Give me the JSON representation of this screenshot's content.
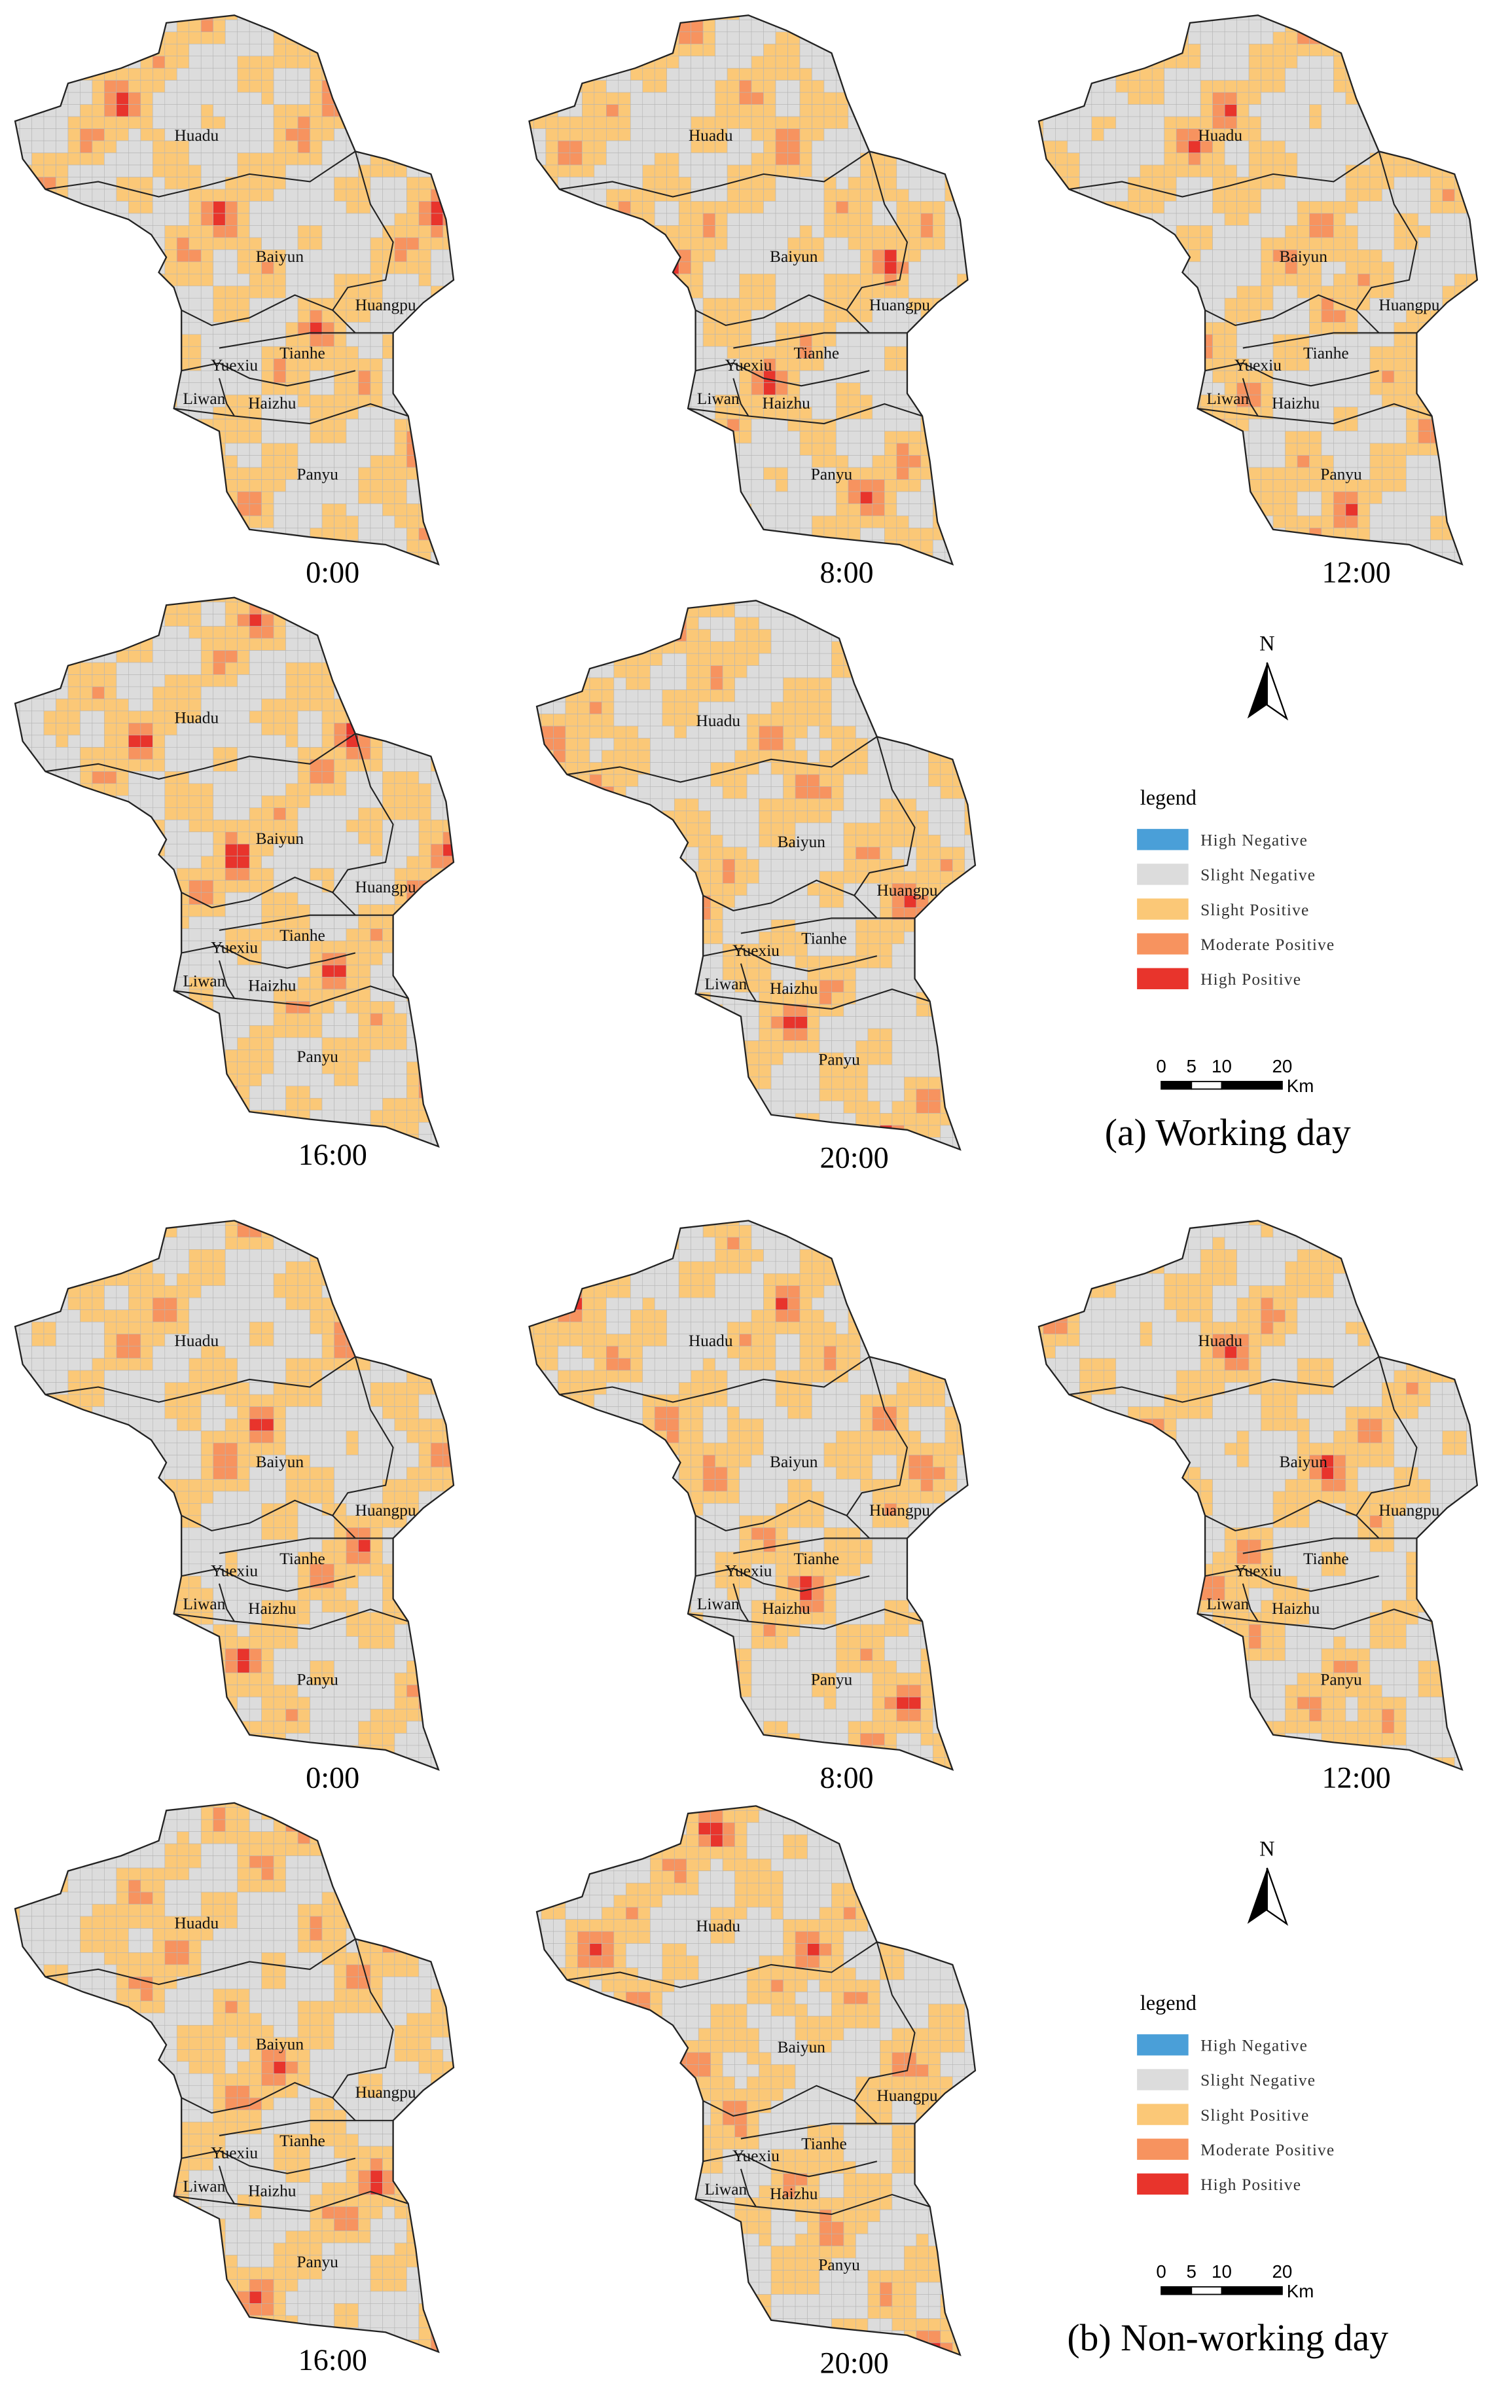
{
  "districts": [
    "Huadu",
    "Baiyun",
    "Huangpu",
    "Tianhe",
    "Yuexiu",
    "Liwan",
    "Haizhu",
    "Panyu"
  ],
  "legend_colors": [
    "#4a9fd8",
    "#dcdcdc",
    "#fbc877",
    "#f7935f",
    "#e8342c"
  ],
  "groups": [
    {
      "caption": "(a) Working day",
      "maps": [
        {
          "time": "0:00"
        },
        {
          "time": "8:00"
        },
        {
          "time": "12:00"
        },
        {
          "time": "16:00"
        },
        {
          "time": "20:00"
        }
      ],
      "north": "N",
      "legend": {
        "title": "legend",
        "items": [
          "High Negative",
          "Slight Negative",
          "Slight Positive",
          "Moderate Positive",
          "High Positive"
        ]
      },
      "scale_bar": {
        "ticks": [
          0,
          5,
          10,
          20
        ],
        "unit": "Km"
      }
    },
    {
      "caption": "(b) Non-working day",
      "maps": [
        {
          "time": "0:00"
        },
        {
          "time": "8:00"
        },
        {
          "time": "12:00"
        },
        {
          "time": "16:00"
        },
        {
          "time": "20:00"
        }
      ],
      "north": "N",
      "legend": {
        "title": "legend",
        "items": [
          "High Negative",
          "Slight Negative",
          "Slight Positive",
          "Moderate Positive",
          "High Positive"
        ]
      },
      "scale_bar": {
        "ticks": [
          0,
          5,
          10,
          20
        ],
        "unit": "Km"
      }
    }
  ]
}
